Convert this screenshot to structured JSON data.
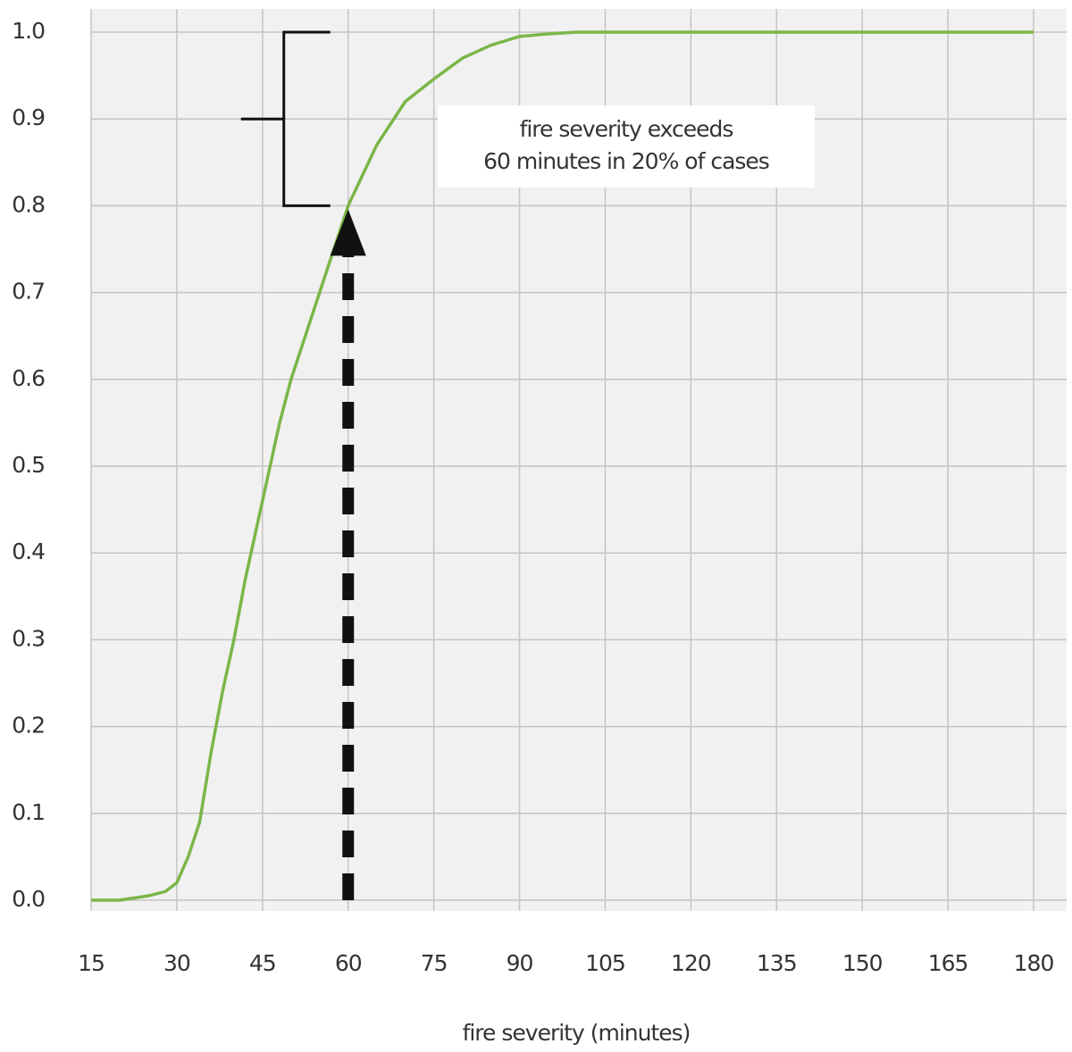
{
  "chart_data": {
    "type": "line",
    "x_label": "fire severity (minutes)",
    "series": [
      {
        "color": "#7ab648",
        "x": [
          15,
          20,
          25,
          28,
          30,
          32,
          34,
          36,
          38,
          40,
          42,
          45,
          48,
          50,
          55,
          60,
          65,
          70,
          75,
          80,
          85,
          90,
          95,
          100,
          180
        ],
        "values": [
          0,
          0,
          0.005,
          0.01,
          0.02,
          0.05,
          0.09,
          0.17,
          0.24,
          0.3,
          0.37,
          0.46,
          0.55,
          0.6,
          0.7,
          0.8,
          0.87,
          0.92,
          0.946,
          0.97,
          0.985,
          0.995,
          0.998,
          1.0,
          1.0
        ]
      }
    ],
    "xlim": [
      15,
      180
    ],
    "xticks": [
      15,
      30,
      45,
      60,
      75,
      90,
      105,
      120,
      135,
      150,
      165,
      180
    ],
    "ylim": [
      0,
      1
    ],
    "yticks": [
      {
        "value": 0,
        "label": "0.0"
      },
      {
        "value": 0.1,
        "label": "0.1"
      },
      {
        "value": 0.2,
        "label": "0.2"
      },
      {
        "value": 0.3,
        "label": "0.3"
      },
      {
        "value": 0.4,
        "label": "0.4"
      },
      {
        "value": 0.5,
        "label": "0.5"
      },
      {
        "value": 0.6,
        "label": "0.6"
      },
      {
        "value": 0.7,
        "label": "0.7"
      },
      {
        "value": 0.8,
        "label": "0.8"
      },
      {
        "value": 0.9,
        "label": "0.9"
      },
      {
        "value": 1,
        "label": "1.0"
      }
    ],
    "grid": true,
    "marker": {
      "x": 60,
      "y": 0.8
    },
    "bracket": {
      "from": 0.8,
      "to": 1.0
    },
    "annotation": [
      "fire severity exceeds",
      "60 minutes in 20% of cases"
    ]
  }
}
